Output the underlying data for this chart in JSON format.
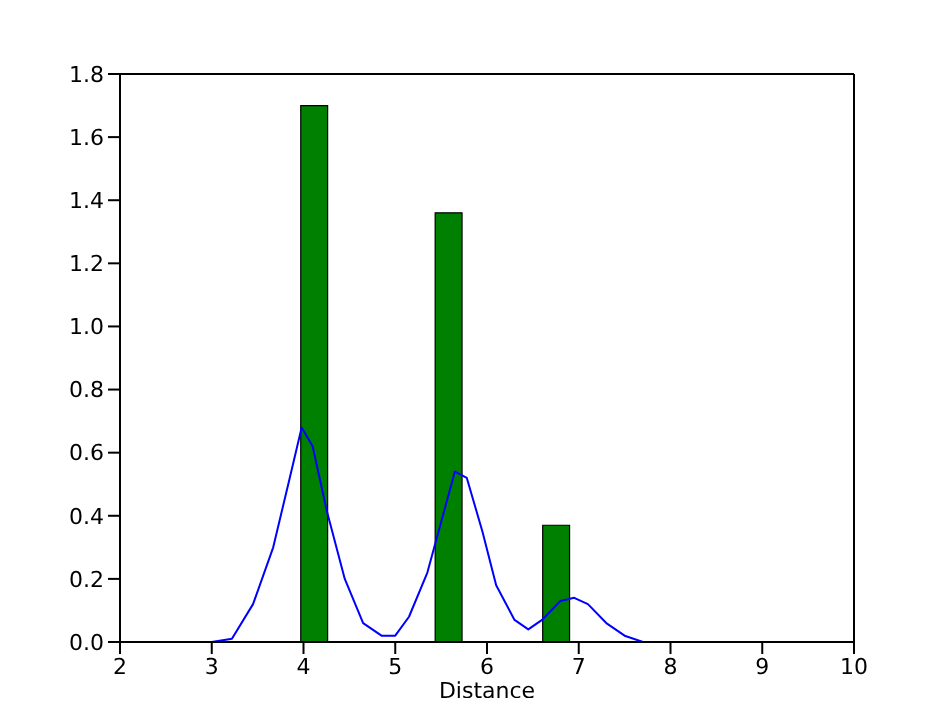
{
  "chart_data": {
    "type": "histogram",
    "xlabel": "Distance",
    "xlim": [
      2,
      10
    ],
    "xticks": [
      2,
      3,
      4,
      5,
      6,
      7,
      8,
      9,
      10
    ],
    "ylim": [
      0,
      1.8
    ],
    "yticks": [
      {
        "value": 0,
        "label": "0.0"
      },
      {
        "value": 0.2,
        "label": "0.2"
      },
      {
        "value": 0.4,
        "label": "0.4"
      },
      {
        "value": 0.6,
        "label": "0.6"
      },
      {
        "value": 0.8,
        "label": "0.8"
      },
      {
        "value": 1,
        "label": "1.0"
      },
      {
        "value": 1.2,
        "label": "1.2"
      },
      {
        "value": 1.4,
        "label": "1.4"
      },
      {
        "value": 1.6,
        "label": "1.6"
      },
      {
        "value": 1.8,
        "label": "1.8"
      }
    ],
    "grid": false,
    "legend": false,
    "bins": [
      3.97,
      4.263,
      4.556,
      4.849,
      5.142,
      5.435,
      5.728,
      6.021,
      6.314,
      6.607,
      6.9
    ],
    "values": [
      1.7,
      0,
      0,
      0,
      0,
      1.36,
      0,
      0,
      0,
      0.37
    ],
    "color": "#008000",
    "series": [
      {
        "type": "line",
        "color": "#0000ff",
        "x": [
          3.0,
          3.22,
          3.45,
          3.67,
          3.85,
          3.98,
          4.1,
          4.25,
          4.45,
          4.65,
          4.85,
          5.0,
          5.15,
          5.35,
          5.5,
          5.65,
          5.78,
          5.95,
          6.1,
          6.3,
          6.45,
          6.6,
          6.8,
          6.95,
          7.1,
          7.3,
          7.5,
          7.7,
          7.85
        ],
        "values": [
          0,
          0.01,
          0.12,
          0.3,
          0.52,
          0.68,
          0.62,
          0.42,
          0.2,
          0.06,
          0.02,
          0.02,
          0.08,
          0.22,
          0.38,
          0.54,
          0.52,
          0.35,
          0.18,
          0.07,
          0.04,
          0.07,
          0.13,
          0.14,
          0.12,
          0.06,
          0.02,
          0,
          0
        ]
      }
    ]
  }
}
